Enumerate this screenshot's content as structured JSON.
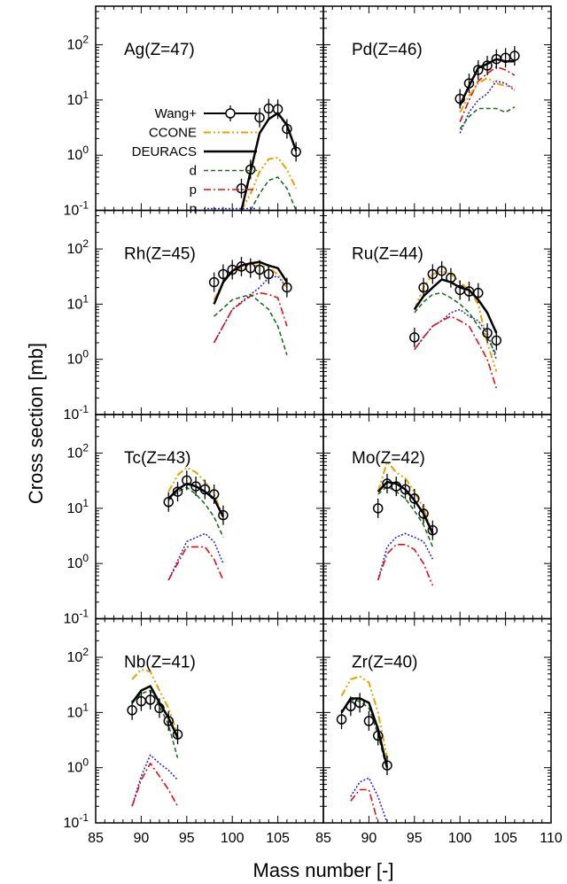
{
  "figure": {
    "ylabel": "Cross section [mb]",
    "xlabel": "Mass number [-]"
  },
  "chart_data": {
    "type": "line",
    "layout": "4x2 panel grid, shared axes",
    "xlim": [
      85,
      110
    ],
    "ylim": [
      0.1,
      500
    ],
    "yscale": "log",
    "x_ticks": [
      "85",
      "90",
      "95",
      "100",
      "105",
      "110"
    ],
    "y_ticks": [
      "10-1",
      "100",
      "101",
      "102"
    ],
    "legend_placement": "Ag panel, left of data",
    "series_styles": [
      {
        "name": "Wang+",
        "color": "#000000",
        "dash": "",
        "width": 2,
        "marker": "open-circle-errorbar"
      },
      {
        "name": "CCONE",
        "color": "#E8A000",
        "dash": "8,3,2,3,2,3",
        "width": 2
      },
      {
        "name": "DEURACS",
        "color": "#000000",
        "dash": "",
        "width": 2.5
      },
      {
        "name": "d",
        "color": "#1F6E1F",
        "dash": "5,3",
        "width": 1.6
      },
      {
        "name": "p",
        "color": "#E01010",
        "dash": "8,3,2,3",
        "width": 1.6
      },
      {
        "name": "n",
        "color": "#2A2AD0",
        "dash": "2,2",
        "width": 1.6
      }
    ],
    "panels": [
      {
        "title": "Ag(Z=47)",
        "series": [
          {
            "name": "Wang+",
            "x": [
              101,
              102,
              103,
              104,
              105,
              106,
              107
            ],
            "y": [
              0.25,
              0.55,
              4.8,
              7.0,
              6.8,
              3.0,
              1.15
            ]
          },
          {
            "name": "CCONE",
            "x": [
              101,
              102,
              103,
              104,
              105,
              106,
              107
            ],
            "y": [
              0.1,
              0.2,
              0.5,
              0.85,
              0.9,
              0.55,
              0.25
            ]
          },
          {
            "name": "DEURACS",
            "x": [
              101,
              102,
              103,
              104,
              105,
              106,
              107
            ],
            "y": [
              0.1,
              0.5,
              2.5,
              4.5,
              5.8,
              3.5,
              1.2
            ]
          },
          {
            "name": "d",
            "x": [
              102,
              103,
              104,
              105,
              106,
              107
            ],
            "y": [
              0.1,
              0.2,
              0.35,
              0.4,
              0.25,
              0.1
            ]
          },
          {
            "name": "p",
            "x": [
              101,
              102,
              103,
              104,
              105,
              106,
              107
            ],
            "y": [
              0.1,
              0.5,
              2.5,
              4.5,
              5.6,
              3.4,
              1.15
            ]
          },
          {
            "name": "n",
            "x": [],
            "y": []
          }
        ]
      },
      {
        "title": "Pd(Z=46)",
        "series": [
          {
            "name": "Wang+",
            "x": [
              100,
              101,
              102,
              103,
              104,
              105,
              106
            ],
            "y": [
              10.5,
              20,
              35,
              42,
              55,
              58,
              63
            ]
          },
          {
            "name": "CCONE",
            "x": [
              100,
              101,
              102,
              103,
              104,
              105,
              106
            ],
            "y": [
              6,
              12,
              20,
              25,
              20,
              18,
              17
            ]
          },
          {
            "name": "DEURACS",
            "x": [
              100,
              101,
              102,
              103,
              104,
              105,
              106
            ],
            "y": [
              8,
              18,
              38,
              45,
              55,
              50,
              50
            ]
          },
          {
            "name": "d",
            "x": [
              100,
              101,
              102,
              103,
              104,
              105,
              106
            ],
            "y": [
              3,
              5,
              7,
              7,
              7,
              6,
              7.5
            ]
          },
          {
            "name": "p",
            "x": [
              100,
              101,
              102,
              103,
              104,
              105,
              106
            ],
            "y": [
              4,
              10,
              22,
              30,
              40,
              35,
              28
            ]
          },
          {
            "name": "n",
            "x": [
              100,
              101,
              102,
              103,
              104,
              105,
              106
            ],
            "y": [
              2.5,
              6,
              10,
              13,
              22,
              20,
              15
            ]
          }
        ]
      },
      {
        "title": "Rh(Z=45)",
        "series": [
          {
            "name": "Wang+",
            "x": [
              98,
              99,
              100,
              101,
              102,
              103,
              104,
              106
            ],
            "y": [
              25,
              35,
              42,
              48,
              45,
              42,
              35,
              20
            ]
          },
          {
            "name": "CCONE",
            "x": [
              98,
              99,
              100,
              101,
              102,
              103,
              104,
              105,
              106
            ],
            "y": [
              12,
              25,
              38,
              45,
              50,
              50,
              45,
              35,
              20
            ]
          },
          {
            "name": "DEURACS",
            "x": [
              98,
              99,
              100,
              101,
              102,
              103,
              104,
              105,
              106
            ],
            "y": [
              10,
              25,
              40,
              50,
              55,
              58,
              50,
              45,
              25
            ]
          },
          {
            "name": "d",
            "x": [
              98,
              100,
              102,
              104,
              105,
              106
            ],
            "y": [
              6,
              12,
              15,
              8,
              4,
              1.2
            ]
          },
          {
            "name": "p",
            "x": [
              98,
              100,
              102,
              103,
              104,
              105,
              106
            ],
            "y": [
              2,
              8,
              14,
              16,
              15,
              13,
              4
            ]
          },
          {
            "name": "n",
            "x": [
              98,
              100,
              102,
              103,
              104,
              105,
              106
            ],
            "y": [
              2,
              8,
              15,
              20,
              30,
              32,
              20
            ]
          }
        ]
      },
      {
        "title": "Ru(Z=44)",
        "series": [
          {
            "name": "Wang+",
            "x": [
              95,
              96,
              97,
              98,
              99,
              100,
              101,
              102,
              103,
              104
            ],
            "y": [
              2.5,
              20,
              35,
              40,
              30,
              18,
              17,
              16,
              3,
              2.2
            ]
          },
          {
            "name": "CCONE",
            "x": [
              95,
              96,
              97,
              98,
              99,
              100,
              101,
              102,
              103,
              104
            ],
            "y": [
              8,
              20,
              35,
              40,
              35,
              25,
              18,
              10,
              2,
              0.6
            ]
          },
          {
            "name": "DEURACS",
            "x": [
              95,
              96,
              97,
              98,
              99,
              100,
              101,
              102,
              103,
              104
            ],
            "y": [
              8,
              14,
              20,
              28,
              25,
              20,
              18,
              12,
              7,
              3
            ]
          },
          {
            "name": "d",
            "x": [
              95,
              96,
              97,
              98,
              99,
              100,
              101,
              102,
              103,
              104
            ],
            "y": [
              7,
              11,
              15,
              16,
              13,
              10,
              7,
              4,
              2.5,
              1.2
            ]
          },
          {
            "name": "p",
            "x": [
              95,
              96,
              97,
              98,
              99,
              100,
              101,
              102,
              103,
              104
            ],
            "y": [
              1.5,
              2.5,
              4,
              5,
              6,
              5,
              4,
              2,
              1,
              0.3
            ]
          },
          {
            "name": "n",
            "x": [
              95,
              96,
              97,
              98,
              99,
              100,
              101,
              102,
              103,
              104
            ],
            "y": [
              1.5,
              2.5,
              4,
              5,
              7,
              8,
              6,
              5,
              3,
              1
            ]
          }
        ]
      },
      {
        "title": "Tc(Z=43)",
        "series": [
          {
            "name": "Wang+",
            "x": [
              93,
              94,
              95,
              96,
              97,
              98,
              99
            ],
            "y": [
              13,
              20,
              32,
              25,
              22,
              18,
              7.5
            ]
          },
          {
            "name": "CCONE",
            "x": [
              93,
              94,
              95,
              96,
              97,
              98,
              99
            ],
            "y": [
              20,
              40,
              55,
              45,
              30,
              18,
              7
            ]
          },
          {
            "name": "DEURACS",
            "x": [
              93,
              94,
              95,
              96,
              97,
              98,
              99
            ],
            "y": [
              15,
              22,
              28,
              25,
              20,
              15,
              7
            ]
          },
          {
            "name": "d",
            "x": [
              93,
              94,
              95,
              96,
              97,
              98,
              99
            ],
            "y": [
              14,
              20,
              24,
              18,
              12,
              7,
              3
            ]
          },
          {
            "name": "p",
            "x": [
              93,
              95,
              97,
              98,
              99
            ],
            "y": [
              0.5,
              2,
              2,
              1.2,
              0.5
            ]
          },
          {
            "name": "n",
            "x": [
              93,
              95,
              97,
              98,
              99
            ],
            "y": [
              0.5,
              2.5,
              3.5,
              2.5,
              1
            ]
          }
        ]
      },
      {
        "title": "Mo(Z=42)",
        "series": [
          {
            "name": "Wang+",
            "x": [
              91,
              92,
              93,
              94,
              95,
              96,
              97
            ],
            "y": [
              10,
              28,
              25,
              22,
              15,
              8,
              4
            ]
          },
          {
            "name": "CCONE",
            "x": [
              91,
              92,
              93,
              94,
              95,
              96,
              97
            ],
            "y": [
              20,
              70,
              45,
              35,
              20,
              10,
              3.5
            ]
          },
          {
            "name": "DEURACS",
            "x": [
              91,
              92,
              93,
              94,
              95,
              96,
              97
            ],
            "y": [
              20,
              30,
              28,
              22,
              14,
              8,
              3.5
            ]
          },
          {
            "name": "d",
            "x": [
              91,
              92,
              93,
              94,
              95,
              96,
              97
            ],
            "y": [
              18,
              25,
              20,
              15,
              9,
              5,
              2
            ]
          },
          {
            "name": "p",
            "x": [
              91,
              92,
              93,
              94,
              95,
              96,
              97
            ],
            "y": [
              0.5,
              1.5,
              2.2,
              2.2,
              1.8,
              1,
              0.4
            ]
          },
          {
            "name": "n",
            "x": [
              91,
              92,
              93,
              94,
              95,
              96,
              97
            ],
            "y": [
              0.5,
              2,
              3,
              3.5,
              3,
              2.5,
              1.2
            ]
          }
        ]
      },
      {
        "title": "Nb(Z=41)",
        "series": [
          {
            "name": "Wang+",
            "x": [
              89,
              90,
              91,
              92,
              93,
              94
            ],
            "y": [
              11,
              16,
              17,
              12,
              7,
              4
            ]
          },
          {
            "name": "CCONE",
            "x": [
              89,
              90,
              91,
              92,
              93,
              94
            ],
            "y": [
              40,
              60,
              55,
              25,
              12,
              4
            ]
          },
          {
            "name": "DEURACS",
            "x": [
              89,
              90,
              91,
              92,
              93,
              94
            ],
            "y": [
              15,
              25,
              30,
              15,
              8,
              3.5
            ]
          },
          {
            "name": "d",
            "x": [
              89,
              90,
              91,
              92,
              93,
              94
            ],
            "y": [
              15,
              22,
              25,
              13,
              6,
              1.5
            ]
          },
          {
            "name": "p",
            "x": [
              89,
              90,
              91,
              92,
              93,
              94
            ],
            "y": [
              0.2,
              0.6,
              1.2,
              0.7,
              0.4,
              0.2
            ]
          },
          {
            "name": "n",
            "x": [
              89,
              90,
              91,
              92,
              93,
              94
            ],
            "y": [
              0.2,
              0.7,
              1.7,
              1.2,
              0.9,
              0.6
            ]
          }
        ]
      },
      {
        "title": "Zr(Z=40)",
        "series": [
          {
            "name": "Wang+",
            "x": [
              87,
              88,
              89,
              90,
              91,
              92
            ],
            "y": [
              7.5,
              13,
              15,
              7,
              3.8,
              1.1
            ]
          },
          {
            "name": "CCONE",
            "x": [
              87,
              88,
              89,
              90,
              91,
              92
            ],
            "y": [
              20,
              40,
              45,
              35,
              10,
              1.5
            ]
          },
          {
            "name": "DEURACS",
            "x": [
              87,
              88,
              89,
              90,
              91,
              92
            ],
            "y": [
              10,
              18,
              18,
              15,
              5,
              1.0
            ]
          },
          {
            "name": "d",
            "x": [
              87,
              88,
              89,
              90,
              91,
              92
            ],
            "y": [
              10,
              17,
              16,
              12,
              4,
              0.9
            ]
          },
          {
            "name": "p",
            "x": [
              88,
              89,
              90,
              91
            ],
            "y": [
              0.25,
              0.4,
              0.4,
              0.1
            ]
          },
          {
            "name": "n",
            "x": [
              88,
              89,
              90,
              91,
              92
            ],
            "y": [
              0.3,
              0.55,
              0.65,
              0.3,
              0.1
            ]
          }
        ]
      }
    ]
  }
}
